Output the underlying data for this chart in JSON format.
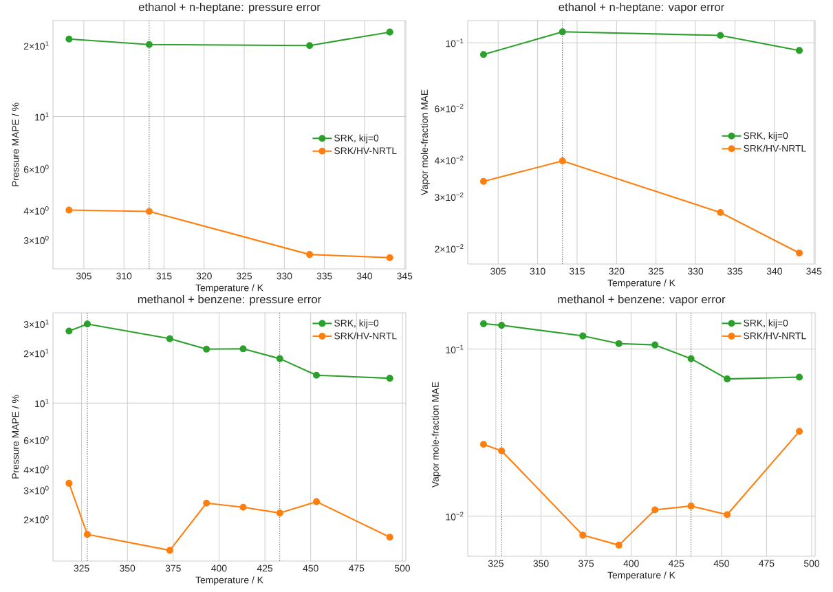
{
  "chart_data": [
    {
      "type": "line",
      "title": "ethanol + n-heptane: pressure error",
      "xlabel": "Temperature / K",
      "ylabel": "Pressure MAPE / %",
      "log": "y",
      "x": [
        303.15,
        313.15,
        333.15,
        343.15
      ],
      "series": [
        {
          "name": "SRK, kij=0",
          "color": "#2ca02c",
          "values": [
            21.3,
            20.2,
            20.0,
            22.8
          ]
        },
        {
          "name": "SRK/HV-NRTL",
          "color": "#ff7f0e",
          "values": [
            4.01,
            3.96,
            2.6,
            2.52
          ]
        }
      ],
      "xlim": [
        301.15,
        345.15
      ],
      "xticks": [
        305,
        310,
        315,
        320,
        325,
        330,
        335,
        340,
        345
      ],
      "ylim": [
        2.26,
        25.5
      ],
      "yticks": [
        {
          "value": 3,
          "label": "3×10$^{0}$"
        },
        {
          "value": 4,
          "label": "4×10$^{0}$"
        },
        {
          "value": 6,
          "label": "6×10$^{0}$"
        },
        {
          "value": 10,
          "label": "10$^{1}$"
        },
        {
          "value": 20,
          "label": "2×10$^{1}$"
        }
      ],
      "grid": true,
      "legend": "right",
      "marker": "circle",
      "line_style": "solid",
      "ref_lines": [
        {
          "axis": "x",
          "value": 313.15,
          "color": "#555555",
          "line_style": "dotted"
        }
      ]
    },
    {
      "type": "line",
      "title": "ethanol + n-heptane: vapor error",
      "xlabel": "Temperature / K",
      "ylabel": "Vapor mole-fraction MAE",
      "log": "y",
      "x": [
        303.15,
        313.15,
        333.15,
        343.15
      ],
      "series": [
        {
          "name": "SRK, kij=0",
          "color": "#2ca02c",
          "values": [
            0.0913,
            0.109,
            0.106,
            0.0942
          ]
        },
        {
          "name": "SRK/HV-NRTL",
          "color": "#ff7f0e",
          "values": [
            0.0338,
            0.0397,
            0.0265,
            0.0193
          ]
        }
      ],
      "xlim": [
        301.15,
        345.15
      ],
      "xticks": [
        305,
        310,
        315,
        320,
        325,
        330,
        335,
        340,
        345
      ],
      "ylim": [
        0.0177,
        0.119
      ],
      "yticks": [
        {
          "value": 0.02,
          "label": "2×10$^{−2}$"
        },
        {
          "value": 0.03,
          "label": "3×10$^{−2}$"
        },
        {
          "value": 0.04,
          "label": "4×10$^{−2}$"
        },
        {
          "value": 0.06,
          "label": "6×10$^{−2}$"
        },
        {
          "value": 0.1,
          "label": "10$^{−1}$"
        }
      ],
      "grid": true,
      "legend": "right",
      "marker": "circle",
      "line_style": "solid",
      "ref_lines": [
        {
          "axis": "x",
          "value": 313.15,
          "color": "#555555",
          "line_style": "dotted"
        }
      ]
    },
    {
      "type": "line",
      "title": "methanol + benzene: pressure error",
      "xlabel": "Temperature / K",
      "ylabel": "Pressure MAPE / %",
      "log": "y",
      "x": [
        318.15,
        328.15,
        373.15,
        393.15,
        413.15,
        433.15,
        453.15,
        493.15
      ],
      "series": [
        {
          "name": "SRK, kij=0",
          "color": "#2ca02c",
          "values": [
            27.1,
            29.9,
            24.4,
            21.1,
            21.2,
            18.5,
            14.7,
            14.1
          ]
        },
        {
          "name": "SRK/HV-NRTL",
          "color": "#ff7f0e",
          "values": [
            3.29,
            1.62,
            1.3,
            2.5,
            2.36,
            2.18,
            2.55,
            1.56
          ]
        }
      ],
      "xlim": [
        309.4,
        501.9
      ],
      "xticks": [
        325,
        350,
        375,
        400,
        425,
        450,
        475,
        500
      ],
      "ylim": [
        1.12,
        34.9
      ],
      "yticks": [
        {
          "value": 2,
          "label": "2×10$^{0}$"
        },
        {
          "value": 3,
          "label": "3×10$^{0}$"
        },
        {
          "value": 4,
          "label": "4×10$^{0}$"
        },
        {
          "value": 6,
          "label": "6×10$^{0}$"
        },
        {
          "value": 10,
          "label": "10$^{1}$"
        },
        {
          "value": 20,
          "label": "2×10$^{1}$"
        },
        {
          "value": 30,
          "label": "3×10$^{1}$"
        }
      ],
      "grid": true,
      "legend": "top right",
      "marker": "circle",
      "line_style": "solid",
      "ref_lines": [
        {
          "axis": "x",
          "value": 328.15,
          "color": "#555555",
          "line_style": "dotted"
        },
        {
          "axis": "x",
          "value": 433.15,
          "color": "#555555",
          "line_style": "dotted"
        }
      ]
    },
    {
      "type": "line",
      "title": "methanol + benzene: vapor error",
      "xlabel": "Temperature / K",
      "ylabel": "Vapor mole-fraction MAE",
      "log": "y",
      "x": [
        318.15,
        328.15,
        373.15,
        393.15,
        413.15,
        433.15,
        453.15,
        493.15
      ],
      "series": [
        {
          "name": "SRK, kij=0",
          "color": "#2ca02c",
          "values": [
            0.142,
            0.139,
            0.12,
            0.108,
            0.106,
            0.0877,
            0.0663,
            0.068
          ]
        },
        {
          "name": "SRK/HV-NRTL",
          "color": "#ff7f0e",
          "values": [
            0.0269,
            0.0246,
            0.00769,
            0.0067,
            0.0109,
            0.0115,
            0.0102,
            0.0322
          ]
        }
      ],
      "xlim": [
        309.4,
        501.9
      ],
      "xticks": [
        325,
        350,
        375,
        400,
        425,
        450,
        475,
        500
      ],
      "ylim": [
        0.00575,
        0.165
      ],
      "yticks": [
        {
          "value": 0.01,
          "label": "10$^{−2}$"
        },
        {
          "value": 0.1,
          "label": "10$^{−1}$"
        }
      ],
      "grid": true,
      "legend": "top right",
      "marker": "circle",
      "line_style": "solid",
      "ref_lines": [
        {
          "axis": "x",
          "value": 328.15,
          "color": "#555555",
          "line_style": "dotted"
        },
        {
          "axis": "x",
          "value": 433.15,
          "color": "#555555",
          "line_style": "dotted"
        }
      ]
    }
  ]
}
